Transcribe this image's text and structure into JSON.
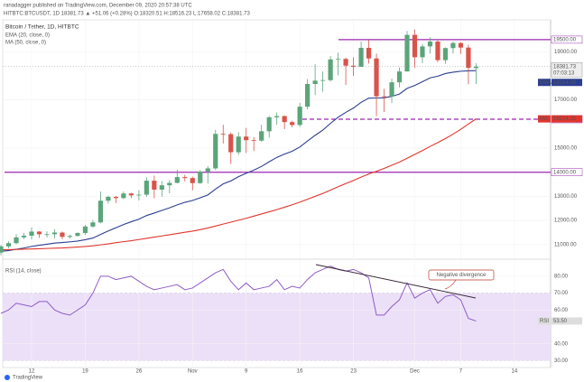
{
  "header": {
    "author_line": "ranadagger published on TradingView.com, December 09, 2020 20:57:38 UTC",
    "symbol_line": "HITBTC:BTCUSDT, 1D 18381.73 ▲ +51.06 (+0.28%) O:18320.51 H:18516.23 L:17658.02 C:18381.73",
    "footer": "TradingView"
  },
  "chart_data": [
    {
      "type": "candlestick",
      "title": "Bitcoin / Tether, 1D, HITBTC",
      "categories": [
        null,
        null,
        null,
        null,
        "12",
        null,
        null,
        null,
        null,
        null,
        null,
        "19",
        null,
        null,
        null,
        null,
        null,
        null,
        "26",
        null,
        null,
        null,
        null,
        null,
        null,
        "Nov",
        null,
        null,
        null,
        null,
        null,
        null,
        "9",
        null,
        null,
        null,
        null,
        null,
        null,
        "16",
        null,
        null,
        null,
        null,
        null,
        null,
        "23",
        null,
        null,
        null,
        null,
        null,
        null,
        null,
        "Dec",
        null,
        null,
        null,
        null,
        null,
        "7",
        null,
        null,
        null,
        null,
        null,
        null,
        "14",
        null,
        null
      ],
      "open": [
        10670,
        10925,
        11060,
        11300,
        11370,
        11540,
        11430,
        11430,
        11500,
        11320,
        11360,
        11480,
        11750,
        11920,
        12820,
        12980,
        12930,
        13120,
        13040,
        13070,
        13650,
        13280,
        13460,
        13560,
        13800,
        13760,
        13550,
        14030,
        14160,
        15590,
        15580,
        14830,
        15480,
        15330,
        15310,
        15700,
        16280,
        16330,
        16080,
        15960,
        16720,
        17660,
        17800,
        17820,
        18680,
        18700,
        18420,
        18370,
        19160,
        18720,
        17150,
        17140,
        17730,
        18180,
        19700,
        18770,
        19220,
        19420,
        18650,
        19150,
        19360,
        19170,
        18320.51,
        null,
        null,
        null,
        null,
        null,
        null,
        null
      ],
      "high": [
        10990,
        11140,
        11430,
        11480,
        11710,
        11560,
        11550,
        11640,
        11540,
        11410,
        11510,
        11820,
        12020,
        13200,
        13030,
        13020,
        13200,
        13150,
        13250,
        13790,
        13860,
        13630,
        13680,
        14100,
        13900,
        13820,
        14090,
        14250,
        15760,
        15970,
        15650,
        15660,
        15840,
        15460,
        15970,
        16340,
        16480,
        16350,
        16140,
        16880,
        17860,
        18480,
        18180,
        18820,
        18960,
        18750,
        18770,
        19420,
        19480,
        18920,
        17460,
        17880,
        18350,
        19860,
        19920,
        19320,
        19600,
        19510,
        19180,
        19420,
        19400,
        19290,
        18516.23,
        null,
        null,
        null,
        null,
        null,
        null,
        null
      ],
      "low": [
        10560,
        10850,
        11020,
        11230,
        11220,
        11280,
        11300,
        11260,
        11220,
        11250,
        11340,
        11400,
        11700,
        11890,
        12700,
        12720,
        12880,
        12930,
        12830,
        12980,
        12920,
        12990,
        13130,
        13540,
        13620,
        13250,
        13520,
        13530,
        14090,
        15190,
        14340,
        14720,
        14800,
        14880,
        15270,
        15430,
        15970,
        15790,
        15860,
        15880,
        16600,
        17200,
        17340,
        17760,
        18020,
        17620,
        18000,
        18370,
        18510,
        16330,
        16500,
        16870,
        17520,
        18180,
        18330,
        18520,
        18920,
        18570,
        18500,
        18930,
        18900,
        17650,
        17658.02,
        null,
        null,
        null,
        null,
        null,
        null,
        null
      ],
      "close": [
        10925,
        11060,
        11300,
        11370,
        11540,
        11430,
        11430,
        11500,
        11320,
        11360,
        11480,
        11750,
        11920,
        12820,
        12980,
        12930,
        13120,
        13040,
        13070,
        13650,
        13280,
        13460,
        13560,
        13800,
        13760,
        13550,
        14030,
        14160,
        15590,
        15580,
        14830,
        15480,
        15330,
        15310,
        15700,
        16280,
        16330,
        16080,
        15960,
        16720,
        17660,
        17800,
        17820,
        18680,
        18700,
        18420,
        18370,
        19160,
        18720,
        17150,
        17140,
        17730,
        18180,
        19700,
        18770,
        19220,
        19420,
        18650,
        19150,
        19360,
        19170,
        18330,
        18381.73,
        null,
        null,
        null,
        null,
        null,
        null,
        null
      ],
      "close_label": "18381.73",
      "countdown": "07:03:13",
      "up_color": "#5aa57a",
      "down_color": "#d9534a",
      "series": [
        {
          "name": "EMA",
          "legend": "EMA (20, close, 0)",
          "color": "#2c3e91",
          "tag": "18214.08",
          "values": [
            10721,
            10753,
            10805,
            10859,
            10924,
            10972,
            11016,
            11062,
            11086,
            11112,
            11147,
            11204,
            11272,
            11419,
            11567,
            11697,
            11832,
            11947,
            12054,
            12205,
            12307,
            12417,
            12526,
            12647,
            12753,
            12829,
            12943,
            13059,
            13299,
            13516,
            13641,
            13816,
            13960,
            14088,
            14241,
            14435,
            14615,
            14754,
            14869,
            15045,
            15293,
            15531,
            15749,
            16027,
            16281,
            16484,
            16663,
            16900,
            17073,
            17080,
            17086,
            17147,
            17245,
            17478,
            17601,
            17755,
            17913,
            17983,
            18094,
            18150,
            18190,
            18205,
            18214.08,
            null,
            null,
            null,
            null,
            null,
            null,
            null
          ]
        },
        {
          "name": "MA",
          "legend": "MA (50, close, 0)",
          "color": "#e0362e",
          "tag": "16214.25",
          "values": [
            10780,
            10790,
            10800,
            10810,
            10820,
            10830,
            10840,
            10850,
            10860,
            10880,
            10900,
            10920,
            10950,
            10990,
            11030,
            11080,
            11120,
            11160,
            11210,
            11260,
            11310,
            11360,
            11410,
            11460,
            11510,
            11560,
            11620,
            11690,
            11770,
            11850,
            11930,
            12010,
            12090,
            12180,
            12270,
            12360,
            12450,
            12550,
            12650,
            12760,
            12880,
            13000,
            13120,
            13260,
            13400,
            13530,
            13660,
            13800,
            13930,
            14040,
            14160,
            14290,
            14420,
            14580,
            14740,
            14900,
            15070,
            15230,
            15400,
            15580,
            15780,
            16000,
            16214.25,
            null,
            null,
            null,
            null,
            null,
            null,
            null
          ]
        }
      ],
      "hlines": [
        {
          "value": 19500,
          "label": "19500.00",
          "style": "solid",
          "color": "#9b27b0"
        },
        {
          "value": 16200,
          "label": "16200.00",
          "style": "dashed",
          "color": "#9b27b0"
        },
        {
          "value": 14000,
          "label": "14000.00",
          "style": "solid",
          "color": "#9b27b0"
        }
      ],
      "ylim": [
        10470,
        20320
      ],
      "yticks": [
        {
          "value": 11000,
          "label": "11000.00"
        },
        {
          "value": 12000,
          "label": "12000.00"
        },
        {
          "value": 13000,
          "label": "13000.00"
        },
        {
          "value": 15000,
          "label": "15000.00"
        },
        {
          "value": 17000,
          "label": "17000.00"
        },
        {
          "value": 19000,
          "label": "19000.00"
        }
      ]
    },
    {
      "type": "line",
      "title": "RSI (14, close)",
      "name": "RSI",
      "color": "#8e5cc4",
      "tag": "53.50",
      "band": [
        30,
        70
      ],
      "band_color": "#ece0f8",
      "annotation": "Negative divergence",
      "values": [
        58,
        60,
        64,
        63,
        62,
        65,
        65,
        60,
        58,
        57,
        60,
        63,
        70,
        80,
        80,
        78,
        79,
        80,
        77,
        74,
        72,
        73,
        74,
        75,
        72,
        73,
        76,
        79,
        82,
        84,
        77,
        72,
        76,
        72,
        73,
        74,
        78,
        72,
        74,
        73,
        78,
        82,
        84,
        86,
        84,
        83,
        84,
        82,
        79,
        57,
        57,
        62,
        66,
        76,
        67,
        70,
        72,
        64,
        68,
        69,
        66,
        55,
        53.5,
        null,
        null,
        null,
        null,
        null,
        null,
        null
      ],
      "ylim": [
        27,
        89
      ],
      "yticks": [
        {
          "value": 30,
          "label": "30.00"
        },
        {
          "value": 40,
          "label": "40.00"
        },
        {
          "value": 60,
          "label": "60.00"
        },
        {
          "value": 70,
          "label": "70.00"
        },
        {
          "value": 80,
          "label": "80.00"
        }
      ]
    }
  ]
}
